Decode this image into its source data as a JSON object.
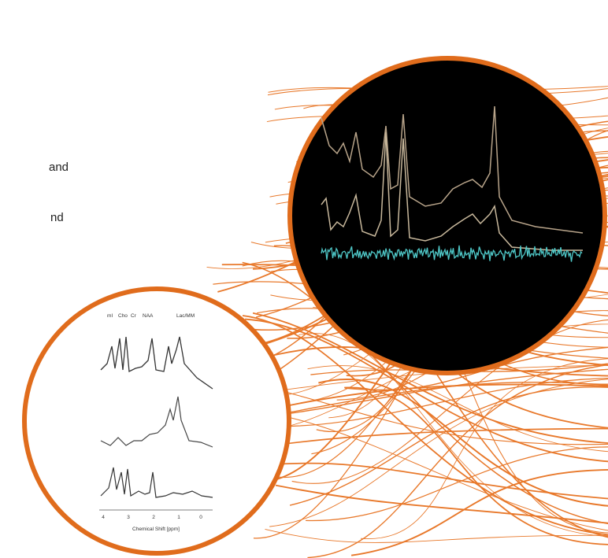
{
  "text_fragments": [
    "and",
    "nd"
  ],
  "spectrum_figure": {
    "peak_labels": [
      "mI",
      "Cho",
      "Cr",
      "NAA",
      "Lac/MM"
    ],
    "axis_ticks": [
      "4",
      "3",
      "2",
      "1",
      "0"
    ],
    "axis_label": "Chemical Shift [ppm]"
  }
}
